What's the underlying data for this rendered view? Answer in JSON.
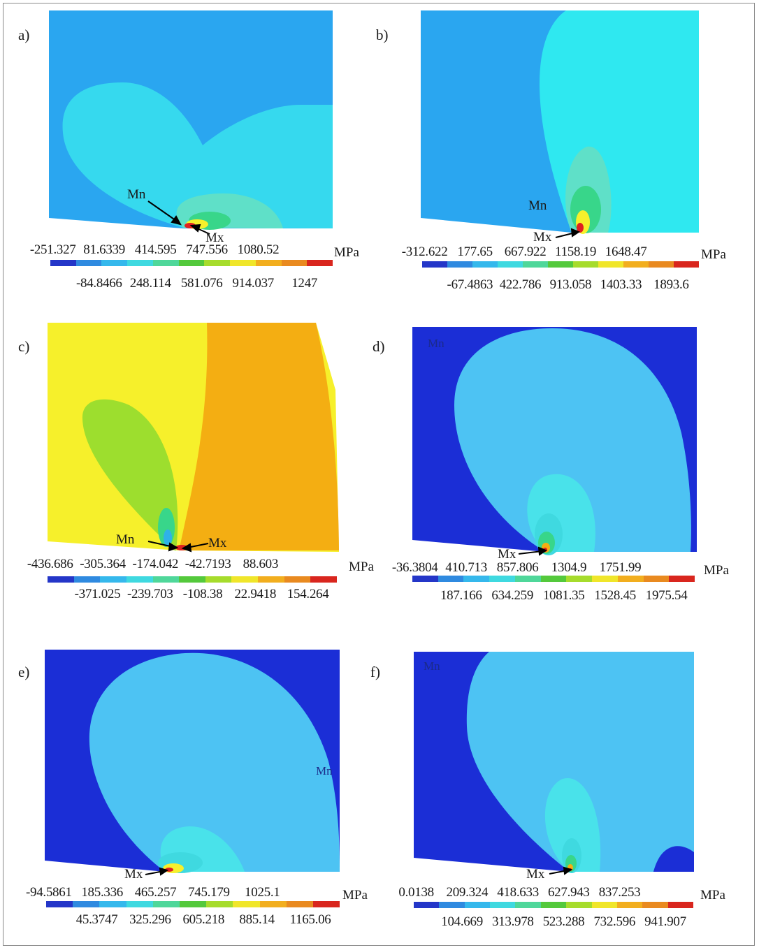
{
  "colors": {
    "legend": [
      "#2436c8",
      "#2f8ae0",
      "#35b8ec",
      "#3fd9e0",
      "#4fd79a",
      "#54c93c",
      "#a6dc2c",
      "#f0e62a",
      "#f2ae1e",
      "#e98a20",
      "#d9261e"
    ],
    "blue_dark": "#1b2ed6",
    "blue_mid": "#2aa6f0",
    "cyan": "#2fe8f0",
    "cyan_light": "#36d9ee",
    "sky": "#4dc3f3",
    "green": "#38d68a",
    "yellow": "#f6f02b",
    "orange": "#f4ae12",
    "lime": "#9dde2e",
    "red": "#e02020"
  },
  "unit": "MPa",
  "panels": [
    {
      "label": "a)",
      "top": [
        "-251.327",
        "81.6339",
        "414.595",
        "747.556",
        "1080.52"
      ],
      "bottom": [
        "-84.8466",
        "248.114",
        "581.076",
        "914.037",
        "1247"
      ],
      "annotations": [
        "Mn",
        "Mx"
      ]
    },
    {
      "label": "b)",
      "top": [
        "-312.622",
        "177.65",
        "667.922",
        "1158.19",
        "1648.47"
      ],
      "bottom": [
        "-67.4863",
        "422.786",
        "913.058",
        "1403.33",
        "1893.6"
      ],
      "annotations": [
        "Mn",
        "Mx"
      ]
    },
    {
      "label": "c)",
      "top": [
        "-436.686",
        "-305.364",
        "-174.042",
        "-42.7193",
        "88.603"
      ],
      "bottom": [
        "-371.025",
        "-239.703",
        "-108.38",
        "22.9418",
        "154.264"
      ],
      "annotations": [
        "Mn",
        "Mx"
      ]
    },
    {
      "label": "d)",
      "top": [
        "-36.3804",
        "410.713",
        "857.806",
        "1304.9",
        "1751.99"
      ],
      "bottom": [
        "187.166",
        "634.259",
        "1081.35",
        "1528.45",
        "1975.54"
      ],
      "annotations": [
        "Mn",
        "Mx"
      ]
    },
    {
      "label": "e)",
      "top": [
        "-94.5861",
        "185.336",
        "465.257",
        "745.179",
        "1025.1"
      ],
      "bottom": [
        "45.3747",
        "325.296",
        "605.218",
        "885.14",
        "1165.06"
      ],
      "annotations": [
        "Mn",
        "Mx"
      ]
    },
    {
      "label": "f)",
      "top": [
        "0.0138",
        "209.324",
        "418.633",
        "627.943",
        "837.253"
      ],
      "bottom": [
        "104.669",
        "313.978",
        "523.288",
        "732.596",
        "941.907"
      ],
      "annotations": [
        "Mn",
        "Mx"
      ]
    }
  ]
}
